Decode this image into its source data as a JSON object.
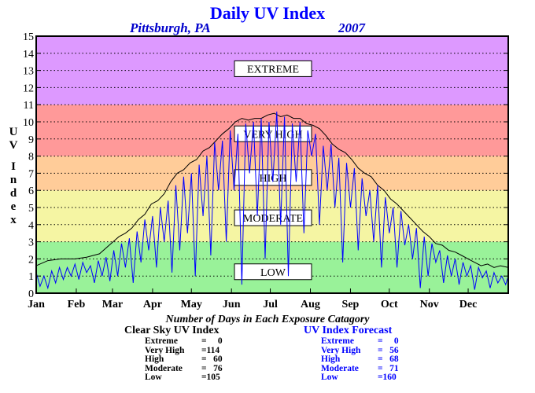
{
  "title": "Daily UV Index",
  "location": "Pittsburgh, PA",
  "year": "2007",
  "chart_data": {
    "type": "line",
    "ylabel": "UV Index",
    "ylim": [
      0,
      15
    ],
    "yticks": [
      0,
      1,
      2,
      3,
      4,
      5,
      6,
      7,
      8,
      9,
      10,
      11,
      12,
      13,
      14,
      15
    ],
    "xlim": [
      1,
      366
    ],
    "month_labels": [
      "Jan",
      "Feb",
      "Mar",
      "Apr",
      "May",
      "Jun",
      "Jul",
      "Aug",
      "Sep",
      "Oct",
      "Nov",
      "Dec"
    ],
    "grid": "horizontal dotted",
    "bands": [
      {
        "name": "LOW",
        "from": 0,
        "to": 3,
        "color": "#99f299"
      },
      {
        "name": "MODERATE",
        "from": 3,
        "to": 6,
        "color": "#f5f5a3"
      },
      {
        "name": "HIGH",
        "from": 6,
        "to": 8,
        "color": "#ffcc99"
      },
      {
        "name": "VERY HIGH",
        "from": 8,
        "to": 11,
        "color": "#ff9999"
      },
      {
        "name": "EXTREME",
        "from": 11,
        "to": 15,
        "color": "#dd99ff"
      }
    ],
    "series": [
      {
        "name": "Clear Sky UV Index",
        "color": "#000000",
        "x": [
          1,
          10,
          20,
          31,
          40,
          50,
          59,
          65,
          70,
          75,
          80,
          85,
          90,
          95,
          100,
          105,
          110,
          115,
          120,
          125,
          130,
          135,
          140,
          145,
          150,
          155,
          160,
          165,
          170,
          175,
          180,
          185,
          190,
          195,
          200,
          205,
          210,
          215,
          220,
          225,
          230,
          235,
          240,
          245,
          250,
          255,
          260,
          265,
          270,
          275,
          280,
          285,
          290,
          295,
          300,
          305,
          310,
          315,
          320,
          325,
          330,
          335,
          340,
          345,
          350,
          355,
          360,
          366
        ],
        "values": [
          1.6,
          1.9,
          2.0,
          2.0,
          2.1,
          2.3,
          2.9,
          3.3,
          3.5,
          3.8,
          4.3,
          4.6,
          5.2,
          5.4,
          5.8,
          6.5,
          7.0,
          7.2,
          7.6,
          7.8,
          8.3,
          8.5,
          8.9,
          9.3,
          9.6,
          10.0,
          10.2,
          10.1,
          10.2,
          10.2,
          10.4,
          10.5,
          10.3,
          10.4,
          10.2,
          10.2,
          9.9,
          9.8,
          9.6,
          9.2,
          8.7,
          8.4,
          8.2,
          7.8,
          7.3,
          7.0,
          6.8,
          6.3,
          6.0,
          5.5,
          5.2,
          4.8,
          4.4,
          4.0,
          3.6,
          3.3,
          2.9,
          2.8,
          2.5,
          2.4,
          2.2,
          2.0,
          1.8,
          1.6,
          1.7,
          1.5,
          1.6,
          1.5
        ]
      },
      {
        "name": "UV Index Forecast",
        "color": "#0000ff",
        "x": [
          1,
          4,
          7,
          10,
          13,
          16,
          19,
          22,
          25,
          28,
          31,
          34,
          37,
          40,
          43,
          46,
          49,
          52,
          55,
          58,
          61,
          64,
          67,
          70,
          73,
          76,
          79,
          82,
          85,
          88,
          91,
          94,
          97,
          100,
          103,
          106,
          109,
          112,
          115,
          118,
          121,
          124,
          127,
          130,
          133,
          136,
          139,
          142,
          145,
          148,
          151,
          154,
          157,
          160,
          163,
          166,
          169,
          172,
          175,
          178,
          181,
          184,
          187,
          190,
          193,
          196,
          199,
          202,
          205,
          208,
          211,
          214,
          217,
          220,
          223,
          226,
          229,
          232,
          235,
          238,
          241,
          244,
          247,
          250,
          253,
          256,
          259,
          262,
          265,
          268,
          271,
          274,
          277,
          280,
          283,
          286,
          289,
          292,
          295,
          298,
          301,
          304,
          307,
          310,
          313,
          316,
          319,
          322,
          325,
          328,
          331,
          334,
          337,
          340,
          343,
          346,
          349,
          352,
          355,
          358,
          361,
          364,
          366
        ],
        "values": [
          1.2,
          0.4,
          1.0,
          0.3,
          1.3,
          0.6,
          1.5,
          0.8,
          1.5,
          1.0,
          1.7,
          0.8,
          1.8,
          1.2,
          1.6,
          0.6,
          1.9,
          1.0,
          2.1,
          0.7,
          2.5,
          1.0,
          2.9,
          1.5,
          3.2,
          0.6,
          3.6,
          1.8,
          4.3,
          2.5,
          4.5,
          1.5,
          5.0,
          3.0,
          5.4,
          1.2,
          6.3,
          2.5,
          6.8,
          3.5,
          7.0,
          1.0,
          7.5,
          4.5,
          8.0,
          2.2,
          8.8,
          6.0,
          8.9,
          3.0,
          9.5,
          6.0,
          9.3,
          0.5,
          9.9,
          7.0,
          10.0,
          4.5,
          10.2,
          2.0,
          10.0,
          6.5,
          10.6,
          4.0,
          10.3,
          1.0,
          9.9,
          6.5,
          10.0,
          3.5,
          9.5,
          8.0,
          9.3,
          4.0,
          8.6,
          6.0,
          8.7,
          5.0,
          7.9,
          1.8,
          7.6,
          5.0,
          7.3,
          2.5,
          6.7,
          4.5,
          6.0,
          3.0,
          6.3,
          1.5,
          5.6,
          3.5,
          5.0,
          1.5,
          4.8,
          2.8,
          4.0,
          2.0,
          3.8,
          0.3,
          3.3,
          1.0,
          2.9,
          1.8,
          2.5,
          0.6,
          2.2,
          1.0,
          2.0,
          0.5,
          1.8,
          1.0,
          1.6,
          0.2,
          1.5,
          0.9,
          1.3,
          0.3,
          1.2,
          0.6,
          1.0,
          0.5,
          1.0
        ]
      }
    ]
  },
  "stats": {
    "heading": "Number of Days in Each Exposure Catagory",
    "clear": {
      "title": "Clear Sky UV Index",
      "rows": [
        {
          "label": "Extreme",
          "value": "=     0"
        },
        {
          "label": "Very High",
          "value": "=114"
        },
        {
          "label": "High",
          "value": "=   60"
        },
        {
          "label": "Moderate",
          "value": "=   76"
        },
        {
          "label": "Low",
          "value": "=105"
        }
      ]
    },
    "forecast": {
      "title": "UV Index Forecast",
      "rows": [
        {
          "label": "Extreme",
          "value": "=     0"
        },
        {
          "label": "Very High",
          "value": "=   56"
        },
        {
          "label": "High",
          "value": "=   68"
        },
        {
          "label": "Moderate",
          "value": "=   71"
        },
        {
          "label": "Low",
          "value": "=160"
        }
      ]
    }
  }
}
